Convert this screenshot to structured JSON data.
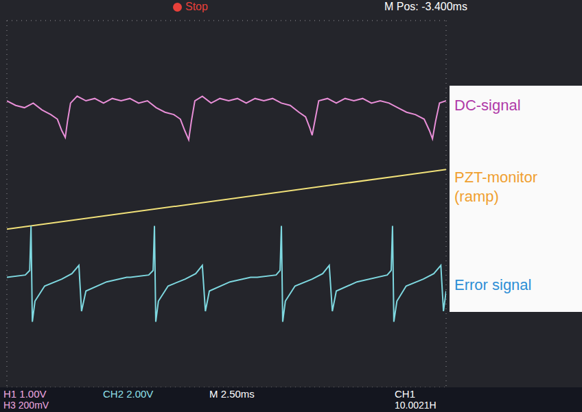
{
  "chart_data": {
    "type": "line",
    "xlim": [
      0,
      10
    ],
    "ylim": [
      -4,
      4
    ],
    "xticks": [
      0,
      1,
      2,
      3,
      4,
      5,
      6,
      7,
      8,
      9,
      10
    ],
    "yticks": [
      -4,
      -3,
      -2,
      -1,
      0,
      1,
      2,
      3,
      4
    ],
    "grid": true,
    "tick_labels": false,
    "legend": "right",
    "series": [
      {
        "name": "DC-signal",
        "color": "#e98fd8",
        "label_color": "#b03aa8",
        "x": [
          0,
          0.2,
          0.4,
          0.6,
          0.8,
          1.0,
          1.15,
          1.25,
          1.33,
          1.38,
          1.45,
          1.6,
          1.8,
          2.0,
          2.2,
          2.4,
          2.6,
          2.8,
          3.0,
          3.2,
          3.4,
          3.6,
          3.8,
          3.95,
          4.05,
          4.14,
          4.2,
          4.28,
          4.45,
          4.65,
          4.85,
          5.05,
          5.25,
          5.45,
          5.65,
          5.85,
          6.05,
          6.25,
          6.45,
          6.65,
          6.8,
          6.9,
          6.95,
          7.02,
          7.1,
          7.3,
          7.5,
          7.7,
          7.9,
          8.1,
          8.3,
          8.5,
          8.7,
          8.9,
          9.1,
          9.3,
          9.5,
          9.62,
          9.69,
          9.76,
          9.85,
          10
        ],
        "values": [
          2.25,
          2.15,
          2.1,
          2.2,
          2.05,
          1.95,
          1.85,
          1.6,
          1.45,
          1.8,
          2.2,
          2.35,
          2.25,
          2.3,
          2.2,
          2.3,
          2.25,
          2.3,
          2.2,
          2.25,
          2.1,
          2.0,
          1.95,
          1.85,
          1.6,
          1.4,
          1.8,
          2.25,
          2.35,
          2.2,
          2.3,
          2.25,
          2.3,
          2.2,
          2.3,
          2.25,
          2.3,
          2.2,
          2.15,
          2.0,
          1.9,
          1.65,
          1.5,
          1.85,
          2.25,
          2.3,
          2.2,
          2.3,
          2.25,
          2.3,
          2.2,
          2.25,
          2.2,
          2.1,
          2.0,
          1.95,
          1.85,
          1.6,
          1.42,
          1.8,
          2.2,
          2.25
        ]
      },
      {
        "name": "PZT-monitor (ramp)",
        "color": "#f2e27a",
        "label_color": "#f0a030",
        "x": [
          0,
          10
        ],
        "values": [
          -0.55,
          0.75
        ]
      },
      {
        "name": "Error signal",
        "color": "#7ed8e0",
        "label_color": "#2e8fd6",
        "x": [
          0,
          0.42,
          0.52,
          0.55,
          0.58,
          0.64,
          0.86,
          1.25,
          1.48,
          1.64,
          1.7,
          1.8,
          2.27,
          2.73,
          2.81,
          3.23,
          3.33,
          3.36,
          3.39,
          3.45,
          3.67,
          4.06,
          4.3,
          4.45,
          4.52,
          4.61,
          5.08,
          5.55,
          5.7,
          6.13,
          6.22,
          6.25,
          6.28,
          6.34,
          6.56,
          6.95,
          7.19,
          7.34,
          7.41,
          7.5,
          7.97,
          8.66,
          8.75,
          8.78,
          8.81,
          8.88,
          9.09,
          9.48,
          9.72,
          9.88,
          9.94,
          10
        ],
        "values": [
          -1.6,
          -1.55,
          -1.45,
          -0.48,
          -2.57,
          -2.12,
          -1.79,
          -1.64,
          -1.52,
          -1.34,
          -2.34,
          -1.9,
          -1.7,
          -1.6,
          -1.6,
          -1.55,
          -1.45,
          -0.48,
          -2.57,
          -2.12,
          -1.79,
          -1.64,
          -1.52,
          -1.34,
          -2.34,
          -1.9,
          -1.7,
          -1.6,
          -1.6,
          -1.55,
          -1.45,
          -0.48,
          -2.57,
          -2.12,
          -1.79,
          -1.64,
          -1.52,
          -1.34,
          -2.34,
          -1.9,
          -1.7,
          -1.55,
          -1.45,
          -0.48,
          -2.57,
          -2.12,
          -1.79,
          -1.64,
          -1.52,
          -1.34,
          -2.34,
          -1.9
        ]
      }
    ],
    "annotations": [
      "Stop",
      "M Pos: -3.400ms",
      "H1 1.00V",
      "CH2 2.00V",
      "M 2.50ms",
      "CH1",
      "H3 200mV",
      "10.0021H"
    ]
  }
}
